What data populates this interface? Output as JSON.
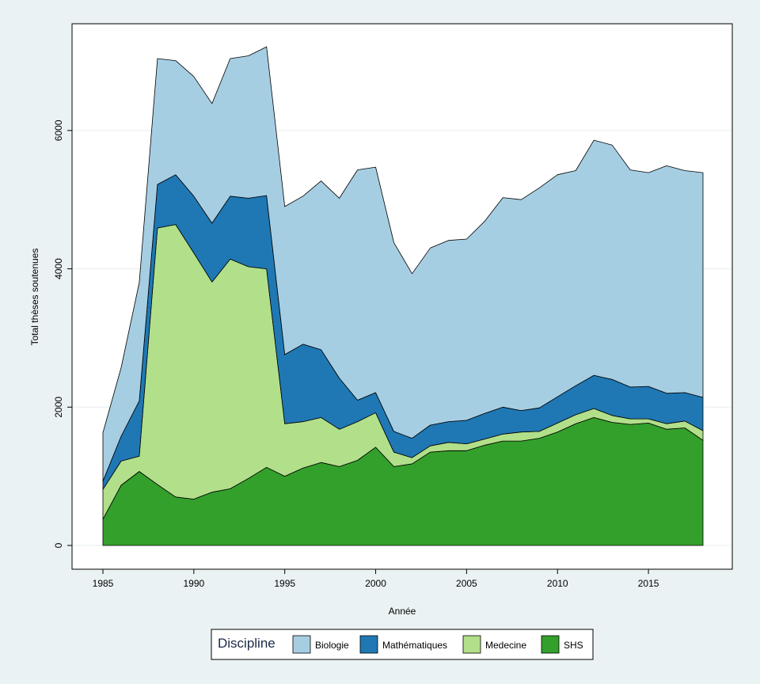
{
  "chart_data": {
    "type": "area",
    "stacked": true,
    "xlabel": "Année",
    "ylabel": "Total thèses soutenues",
    "xlim": [
      1985,
      2018
    ],
    "ylim": [
      0,
      7200
    ],
    "xticks": [
      "1985",
      "1990",
      "1995",
      "2000",
      "2005",
      "2010",
      "2015"
    ],
    "yticks": [
      "0",
      "2000",
      "4000",
      "6000"
    ],
    "grid": true,
    "legend": {
      "title": "Discipline",
      "position": "bottom"
    },
    "x": [
      1985,
      1986,
      1987,
      1988,
      1989,
      1990,
      1991,
      1992,
      1993,
      1994,
      1995,
      1996,
      1997,
      1998,
      1999,
      2000,
      2001,
      2002,
      2003,
      2004,
      2005,
      2006,
      2007,
      2008,
      2009,
      2010,
      2011,
      2012,
      2013,
      2014,
      2015,
      2016,
      2017,
      2018
    ],
    "series": [
      {
        "name": "SHS",
        "color": "#33a02c",
        "values": [
          380,
          870,
          1070,
          880,
          700,
          670,
          770,
          820,
          970,
          1130,
          1000,
          1120,
          1200,
          1140,
          1230,
          1420,
          1140,
          1180,
          1350,
          1370,
          1370,
          1450,
          1510,
          1510,
          1550,
          1640,
          1760,
          1850,
          1780,
          1750,
          1770,
          1680,
          1700,
          1520
        ]
      },
      {
        "name": "Medecine",
        "color": "#b2df8a",
        "values": [
          430,
          350,
          220,
          3710,
          3940,
          3560,
          3040,
          3320,
          3060,
          2870,
          760,
          670,
          650,
          540,
          560,
          500,
          210,
          90,
          90,
          120,
          100,
          90,
          100,
          130,
          100,
          130,
          130,
          130,
          100,
          80,
          60,
          80,
          100,
          140
        ]
      },
      {
        "name": "Mathématiques",
        "color": "#1f78b4",
        "values": [
          120,
          360,
          800,
          630,
          720,
          820,
          850,
          910,
          990,
          1060,
          1000,
          1120,
          980,
          740,
          310,
          290,
          300,
          280,
          300,
          300,
          340,
          370,
          390,
          310,
          340,
          380,
          420,
          480,
          520,
          460,
          470,
          440,
          410,
          480
        ]
      },
      {
        "name": "Biologie",
        "color": "#a6cee3",
        "values": [
          700,
          990,
          1710,
          1820,
          1650,
          1730,
          1730,
          1990,
          2060,
          2150,
          2140,
          2140,
          2440,
          2600,
          3330,
          3260,
          2730,
          2380,
          2560,
          2620,
          2620,
          2780,
          3030,
          3050,
          3180,
          3210,
          3110,
          3400,
          3390,
          3140,
          3090,
          3290,
          3210,
          3250
        ]
      }
    ]
  }
}
